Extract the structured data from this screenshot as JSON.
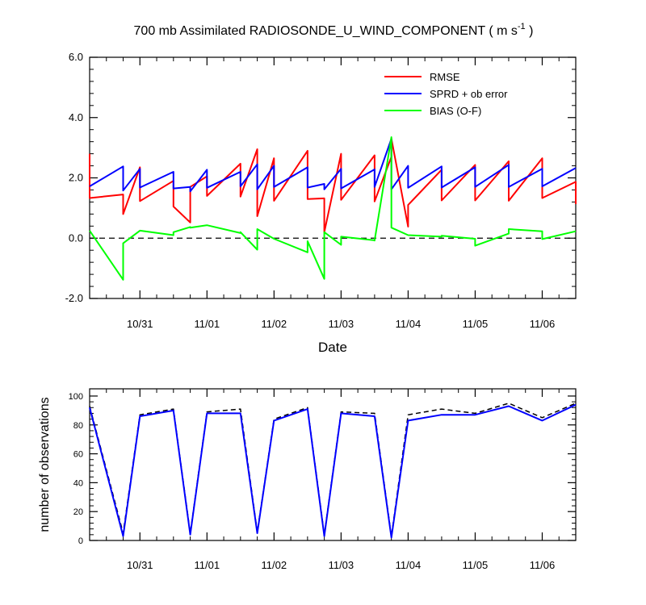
{
  "figure": {
    "title_main": "700 mb Assimilated RADIOSONDE_U_WIND_COMPONENT ( m s",
    "title_sup": "-1",
    "title_close": " )"
  },
  "chart_data": [
    {
      "type": "line",
      "xlabel": "Date",
      "ylabel": "",
      "ylim": [
        -2.0,
        6.0
      ],
      "yticks": [
        -2.0,
        0.0,
        2.0,
        4.0,
        6.0
      ],
      "ytick_labels": [
        "-2.0",
        "0.0",
        "2.0",
        "4.0",
        "6.0"
      ],
      "x_tick_labels": [
        "10/31",
        "11/01",
        "11/02",
        "11/03",
        "11/04",
        "11/05",
        "11/06"
      ],
      "zero_line": "dashed",
      "legend_position": "top-right",
      "series": [
        {
          "name": "RMSE",
          "color": "#ff0000",
          "x": [
            "10/30 06",
            "10/30 06",
            "10/30 18",
            "10/30 18",
            "10/31 00",
            "10/31 00",
            "10/31 12",
            "10/31 12",
            "10/31 18",
            "10/31 18",
            "11/01 00",
            "11/01 00",
            "11/01 12",
            "11/01 12",
            "11/01 18",
            "11/01 18",
            "11/02 00",
            "11/02 00",
            "11/02 12",
            "11/02 12",
            "11/02 18",
            "11/02 18",
            "11/03 00",
            "11/03 00",
            "11/03 12",
            "11/03 12",
            "11/03 18",
            "11/03 18",
            "11/04 00",
            "11/04 00",
            "11/04 12",
            "11/04 12",
            "11/05 00",
            "11/05 00",
            "11/05 12",
            "11/05 12",
            "11/06 00",
            "11/06 00",
            "11/06 12",
            "11/06 12"
          ],
          "values": [
            2.8,
            1.33,
            1.45,
            0.8,
            2.35,
            1.23,
            1.9,
            1.05,
            0.52,
            1.7,
            2.05,
            1.4,
            2.47,
            1.38,
            2.95,
            0.73,
            2.65,
            1.24,
            2.9,
            1.3,
            1.32,
            0.2,
            2.8,
            1.27,
            2.75,
            1.22,
            2.7,
            3.3,
            0.38,
            1.1,
            2.27,
            1.25,
            2.43,
            1.25,
            2.55,
            1.24,
            2.65,
            1.33,
            1.87,
            1.13
          ]
        },
        {
          "name": "SPRD + ob error",
          "color": "#0000ff",
          "x": [
            "10/30 06",
            "10/30 18",
            "10/30 18",
            "10/31 00",
            "10/31 00",
            "10/31 12",
            "10/31 12",
            "10/31 18",
            "10/31 18",
            "11/01 00",
            "11/01 00",
            "11/01 12",
            "11/01 12",
            "11/01 18",
            "11/01 18",
            "11/02 00",
            "11/02 00",
            "11/02 12",
            "11/02 12",
            "11/02 18",
            "11/02 18",
            "11/03 00",
            "11/03 00",
            "11/03 12",
            "11/03 12",
            "11/03 18",
            "11/03 18",
            "11/04 00",
            "11/04 00",
            "11/04 12",
            "11/04 12",
            "11/05 00",
            "11/05 00",
            "11/05 12",
            "11/05 12",
            "11/06 00",
            "11/06 00",
            "11/06 12"
          ],
          "values": [
            1.72,
            2.38,
            1.58,
            2.3,
            1.68,
            2.2,
            1.65,
            1.7,
            1.55,
            2.27,
            1.67,
            2.2,
            1.72,
            2.45,
            1.62,
            2.4,
            1.7,
            2.35,
            1.68,
            1.8,
            1.62,
            2.3,
            1.65,
            2.28,
            1.7,
            3.3,
            1.62,
            2.4,
            1.67,
            2.38,
            1.68,
            2.35,
            1.7,
            2.43,
            1.7,
            2.3,
            1.72,
            2.33
          ]
        },
        {
          "name": "BIAS (O-F)",
          "color": "#00ff00",
          "x": [
            "10/30 06",
            "10/30 18",
            "10/30 18",
            "10/31 00",
            "10/31 12",
            "10/31 12",
            "10/31 18",
            "10/31 18",
            "11/01 00",
            "11/01 12",
            "11/01 12",
            "11/01 18",
            "11/01 18",
            "11/02 00",
            "11/02 12",
            "11/02 12",
            "11/02 18",
            "11/02 18",
            "11/03 00",
            "11/03 00",
            "11/03 12",
            "11/03 12",
            "11/03 18",
            "11/03 18",
            "11/04 00",
            "11/04 12",
            "11/04 12",
            "11/05 00",
            "11/05 00",
            "11/05 12",
            "11/05 12",
            "11/06 00",
            "11/06 00",
            "11/06 12"
          ],
          "values": [
            0.25,
            -1.38,
            -0.17,
            0.25,
            0.1,
            0.2,
            0.37,
            0.35,
            0.43,
            0.17,
            0.2,
            -0.38,
            0.3,
            -0.02,
            -0.47,
            -0.1,
            -1.35,
            0.2,
            -0.22,
            0.05,
            -0.07,
            -0.08,
            3.35,
            0.35,
            0.1,
            0.05,
            0.08,
            -0.02,
            -0.25,
            0.15,
            0.3,
            0.23,
            -0.03,
            0.23
          ]
        }
      ]
    },
    {
      "type": "line",
      "xlabel": "",
      "ylabel": "number of observations",
      "ylim": [
        0,
        105
      ],
      "yticks": [
        0,
        20,
        40,
        60,
        80,
        100
      ],
      "ytick_labels": [
        "0",
        "20",
        "40",
        "60",
        "80",
        "100"
      ],
      "x_tick_labels": [
        "10/31",
        "11/01",
        "11/02",
        "11/03",
        "11/04",
        "11/05",
        "11/06"
      ],
      "series": [
        {
          "color": "#0000ff",
          "style": "solid",
          "x": [
            "10/30 06",
            "10/30 18",
            "10/31 00",
            "10/31 12",
            "10/31 18",
            "11/01 00",
            "11/01 12",
            "11/01 18",
            "11/02 00",
            "11/02 12",
            "11/02 18",
            "11/03 00",
            "11/03 12",
            "11/03 18",
            "11/04 00",
            "11/04 12",
            "11/05 00",
            "11/05 12",
            "11/06 00",
            "11/06 12"
          ],
          "values": [
            92,
            3,
            86,
            90,
            4,
            88,
            88,
            5,
            83,
            91,
            3,
            88,
            86,
            2,
            83,
            87,
            87,
            93,
            83,
            94
          ]
        },
        {
          "color": "#000000",
          "style": "dashed",
          "x": [
            "10/30 06",
            "10/30 18",
            "10/31 00",
            "10/31 12",
            "10/31 18",
            "11/01 00",
            "11/01 12",
            "11/01 18",
            "11/02 00",
            "11/02 12",
            "11/02 18",
            "11/03 00",
            "11/03 12",
            "11/03 18",
            "11/04 00",
            "11/04 12",
            "11/05 00",
            "11/05 12",
            "11/06 00",
            "11/06 12"
          ],
          "values": [
            93,
            5,
            87,
            91,
            5,
            89,
            91,
            6,
            84,
            92,
            4,
            89,
            88,
            3,
            87,
            91,
            88,
            95,
            85,
            95
          ]
        }
      ]
    }
  ]
}
